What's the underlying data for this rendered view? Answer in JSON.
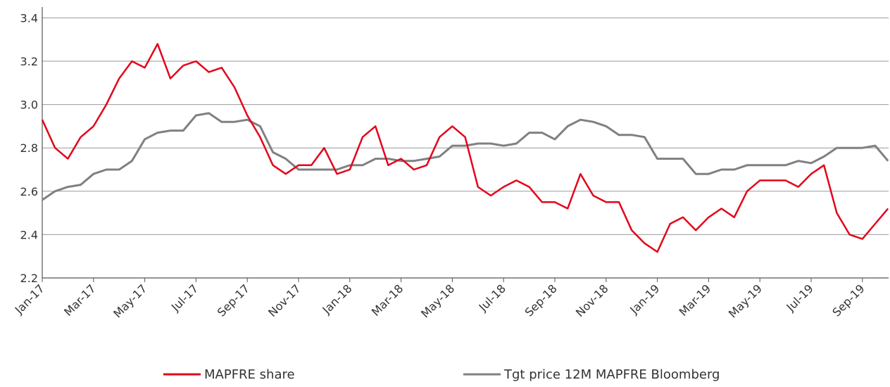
{
  "chart_data": {
    "type": "line",
    "x": [
      "Jan-17",
      null,
      null,
      null,
      "Mar-17",
      null,
      null,
      null,
      "May-17",
      null,
      null,
      null,
      "Jul-17",
      null,
      null,
      null,
      "Sep-17",
      null,
      null,
      null,
      "Nov-17",
      null,
      null,
      null,
      "Jan-18",
      null,
      null,
      null,
      "Mar-18",
      null,
      null,
      null,
      "May-18",
      null,
      null,
      null,
      "Jul-18",
      null,
      null,
      null,
      "Sep-18",
      null,
      null,
      null,
      "Nov-18",
      null,
      null,
      null,
      "Jan-19",
      null,
      null,
      null,
      "Mar-19",
      null,
      null,
      null,
      "May-19",
      null,
      null,
      null,
      "Jul-19",
      null,
      null,
      null,
      "Sep-19",
      null,
      null
    ],
    "series": [
      {
        "name": "MAPFRE share",
        "color": "#e3051b",
        "values": [
          2.93,
          2.8,
          2.75,
          2.85,
          2.9,
          3.0,
          3.12,
          3.2,
          3.17,
          3.28,
          3.12,
          3.18,
          3.2,
          3.15,
          3.17,
          3.08,
          2.95,
          2.85,
          2.72,
          2.68,
          2.72,
          2.72,
          2.8,
          2.68,
          2.7,
          2.85,
          2.9,
          2.72,
          2.75,
          2.7,
          2.72,
          2.85,
          2.9,
          2.85,
          2.62,
          2.58,
          2.62,
          2.65,
          2.62,
          2.55,
          2.55,
          2.52,
          2.68,
          2.58,
          2.55,
          2.55,
          2.42,
          2.36,
          2.32,
          2.45,
          2.48,
          2.42,
          2.48,
          2.52,
          2.48,
          2.6,
          2.65,
          2.65,
          2.65,
          2.62,
          2.68,
          2.72,
          2.5,
          2.4,
          2.38,
          2.45,
          2.52
        ]
      },
      {
        "name": "Tgt price 12M MAPFRE Bloomberg",
        "color": "#808080",
        "values": [
          2.56,
          2.6,
          2.62,
          2.63,
          2.68,
          2.7,
          2.7,
          2.74,
          2.84,
          2.87,
          2.88,
          2.88,
          2.95,
          2.96,
          2.92,
          2.92,
          2.93,
          2.9,
          2.78,
          2.75,
          2.7,
          2.7,
          2.7,
          2.7,
          2.72,
          2.72,
          2.75,
          2.75,
          2.74,
          2.74,
          2.75,
          2.76,
          2.81,
          2.81,
          2.82,
          2.82,
          2.81,
          2.82,
          2.87,
          2.87,
          2.84,
          2.9,
          2.93,
          2.92,
          2.9,
          2.86,
          2.86,
          2.85,
          2.75,
          2.75,
          2.75,
          2.68,
          2.68,
          2.7,
          2.7,
          2.72,
          2.72,
          2.72,
          2.72,
          2.74,
          2.73,
          2.76,
          2.8,
          2.8,
          2.8,
          2.81,
          2.74
        ]
      }
    ],
    "ylim": [
      2.2,
      3.45
    ],
    "yticks": [
      2.2,
      2.4,
      2.6,
      2.8,
      {
        "value": 3,
        "label": "3.0"
      },
      3.2,
      3.4
    ],
    "grid": true,
    "legend": "bottom"
  }
}
